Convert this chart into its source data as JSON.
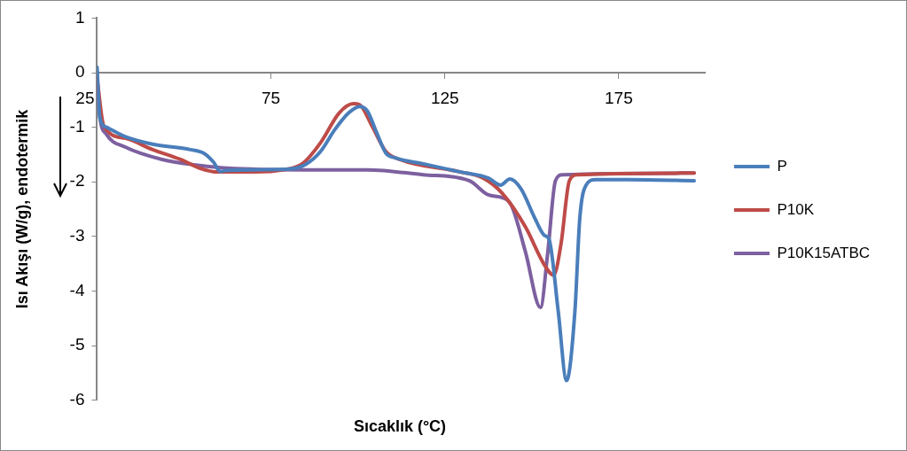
{
  "chart_data": {
    "type": "line",
    "xlabel": "Sıcaklık (°C)",
    "ylabel": "Isı Akışı (W/g), endotermik",
    "xlim": [
      25,
      200
    ],
    "ylim": [
      -6,
      1
    ],
    "xticks": [
      25,
      75,
      125,
      175
    ],
    "yticks": [
      -6,
      -5,
      -4,
      -3,
      -2,
      -1,
      0,
      1
    ],
    "grid": false,
    "legend": "right",
    "marker": "none",
    "line_style": "solid",
    "series": [
      {
        "name": "P",
        "color": "#4a7ebb",
        "x": [
          25,
          25.8,
          27.7,
          33,
          41,
          51.8,
          55.8,
          58.5,
          60.4,
          62.5,
          70.5,
          81,
          85,
          89.3,
          93.3,
          97.3,
          100.5,
          102.7,
          105.4,
          108,
          110.7,
          118.8,
          129.5,
          137.5,
          141,
          143.7,
          146.9,
          150.9,
          153.6,
          155,
          157.6,
          160,
          162.4,
          163.8,
          165.6,
          168.3,
          177.7,
          196.7
        ],
        "values": [
          0.1,
          -0.82,
          -1.0,
          -1.17,
          -1.31,
          -1.41,
          -1.48,
          -1.64,
          -1.81,
          -1.79,
          -1.78,
          -1.76,
          -1.68,
          -1.44,
          -1.05,
          -0.74,
          -0.62,
          -0.7,
          -1.1,
          -1.47,
          -1.56,
          -1.67,
          -1.82,
          -1.93,
          -2.06,
          -1.95,
          -2.13,
          -2.67,
          -2.98,
          -3.06,
          -4.37,
          -5.64,
          -4.37,
          -2.67,
          -2.06,
          -1.96,
          -1.96,
          -1.98
        ]
      },
      {
        "name": "P10K",
        "color": "#be4b48",
        "x": [
          25,
          26.9,
          33,
          41,
          49,
          54.5,
          59.8,
          70.5,
          78.6,
          84,
          89.3,
          94.6,
          98.7,
          100.5,
          104,
          108,
          112,
          129.5,
          136,
          141.5,
          148.2,
          153.6,
          156.3,
          158.4,
          160.8,
          163,
          196.7
        ],
        "values": [
          -0.1,
          -0.97,
          -1.2,
          -1.41,
          -1.59,
          -1.75,
          -1.82,
          -1.82,
          -1.78,
          -1.67,
          -1.28,
          -0.74,
          -0.57,
          -0.59,
          -0.97,
          -1.44,
          -1.59,
          -1.82,
          -1.93,
          -2.21,
          -2.83,
          -3.52,
          -3.71,
          -3.14,
          -1.98,
          -1.87,
          -1.84
        ]
      },
      {
        "name": "P10K15ATBC",
        "color": "#7d60a0",
        "x": [
          25,
          25.8,
          27.7,
          33,
          43.7,
          54.5,
          62.5,
          84,
          102.7,
          118.8,
          132,
          137.5,
          141.5,
          144.2,
          148.2,
          152.5,
          154.6,
          156.8,
          158.9,
          196.7
        ],
        "values": [
          -0.2,
          -0.82,
          -1.13,
          -1.36,
          -1.59,
          -1.7,
          -1.75,
          -1.78,
          -1.78,
          -1.87,
          -1.98,
          -2.24,
          -2.29,
          -2.44,
          -3.29,
          -4.3,
          -3.29,
          -1.98,
          -1.87,
          -1.84
        ]
      }
    ]
  }
}
